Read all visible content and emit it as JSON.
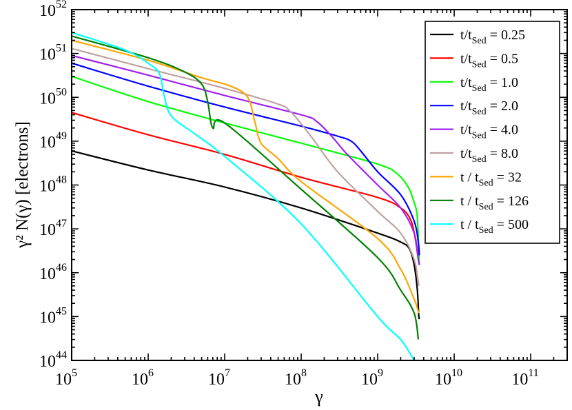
{
  "chart_data": {
    "type": "line",
    "xlabel": "γ",
    "ylabel": "γ² N(γ) [electrons]",
    "x_scale": "log",
    "y_scale": "log",
    "xlim": [
      100000,
      300000000000
    ],
    "ylim": [
      1e+44,
      1e+52
    ],
    "x_tick_exponents": [
      5,
      6,
      7,
      8,
      9,
      10,
      11
    ],
    "y_tick_exponents": [
      44,
      45,
      46,
      47,
      48,
      49,
      50,
      51,
      52
    ],
    "tick_base": "10",
    "grid": false,
    "legend_position": "top-right",
    "series": [
      {
        "name": "t/tSed = 0.25",
        "label_main": "t/t",
        "label_sub": "Sed",
        "label_tail": " = 0.25",
        "color": "#000000",
        "points": [
          [
            100000.0,
            6e+48
          ],
          [
            1000000.0,
            2.2e+48
          ],
          [
            10000000.0,
            9e+47
          ],
          [
            100000000.0,
            3e+47
          ],
          [
            1000000000.0,
            8e+46
          ],
          [
            2000000000.0,
            5e+46
          ],
          [
            2600000000.0,
            3.5e+46
          ],
          [
            3000000000.0,
            1.5e+46
          ],
          [
            3300000000.0,
            4e+45
          ],
          [
            3450000000.0,
            1e+45
          ],
          [
            3500000000.0,
            1e+45
          ]
        ]
      },
      {
        "name": "t/tSed = 0.5",
        "label_main": "t/t",
        "label_sub": "Sed",
        "label_tail": " = 0.5",
        "color": "#ff0000",
        "points": [
          [
            100000.0,
            4.5e+49
          ],
          [
            1000000.0,
            1.4e+49
          ],
          [
            10000000.0,
            5e+48
          ],
          [
            100000000.0,
            1.5e+48
          ],
          [
            1000000000.0,
            5.2e+47
          ],
          [
            2000000000.0,
            3e+47
          ],
          [
            2700000000.0,
            1.6e+47
          ],
          [
            3100000000.0,
            6e+46
          ],
          [
            3400000000.0,
            2e+46
          ],
          [
            3500000000.0,
            2e+46
          ]
        ]
      },
      {
        "name": "t/tSed = 1.0",
        "label_main": "t/t",
        "label_sub": "Sed",
        "label_tail": " = 1.0",
        "color": "#00ff00",
        "points": [
          [
            100000.0,
            3e+50
          ],
          [
            1000000.0,
            8e+49
          ],
          [
            10000000.0,
            2.6e+49
          ],
          [
            100000000.0,
            9e+48
          ],
          [
            1000000000.0,
            3e+48
          ],
          [
            1800000000.0,
            1.8e+48
          ],
          [
            2500000000.0,
            9e+47
          ],
          [
            3000000000.0,
            4e+47
          ],
          [
            3300000000.0,
            1.8e+47
          ],
          [
            3500000000.0,
            1.5e+46
          ]
        ]
      },
      {
        "name": "t/tSed = 2.0",
        "label_main": "t/t",
        "label_sub": "Sed",
        "label_tail": " = 2.0",
        "color": "#0000ff",
        "points": [
          [
            100000.0,
            6e+50
          ],
          [
            1000000.0,
            1.8e+50
          ],
          [
            10000000.0,
            6e+49
          ],
          [
            100000000.0,
            2.2e+49
          ],
          [
            300000000.0,
            1.3e+49
          ],
          [
            450000000.0,
            1e+49
          ],
          [
            600000000.0,
            6e+48
          ],
          [
            1000000000.0,
            2e+48
          ],
          [
            2000000000.0,
            6e+47
          ],
          [
            3000000000.0,
            1.5e+47
          ],
          [
            3400000000.0,
            5e+46
          ],
          [
            3500000000.0,
            2.5e+46
          ]
        ]
      },
      {
        "name": "t/tSed = 4.0",
        "label_main": "t/t",
        "label_sub": "Sed",
        "label_tail": " = 4.0",
        "color": "#a020f0",
        "points": [
          [
            100000.0,
            9e+50
          ],
          [
            1000000.0,
            3.2e+50
          ],
          [
            10000000.0,
            1.1e+50
          ],
          [
            100000000.0,
            4e+49
          ],
          [
            160000000.0,
            2.8e+49
          ],
          [
            250000000.0,
            1.3e+49
          ],
          [
            400000000.0,
            5e+48
          ],
          [
            1000000000.0,
            1e+48
          ],
          [
            2000000000.0,
            3e+47
          ],
          [
            3000000000.0,
            8e+46
          ],
          [
            3400000000.0,
            2e+46
          ],
          [
            3500000000.0,
            1.5e+46
          ]
        ]
      },
      {
        "name": "t/tSed = 8.0",
        "label_main": "t/t",
        "label_sub": "Sed",
        "label_tail": " = 8.0",
        "color": "#c0a0a0",
        "points": [
          [
            100000.0,
            1.3e+51
          ],
          [
            1000000.0,
            4.5e+50
          ],
          [
            10000000.0,
            1.6e+50
          ],
          [
            50000000.0,
            7e+49
          ],
          [
            70000000.0,
            5e+49
          ],
          [
            100000000.0,
            2.5e+49
          ],
          [
            150000000.0,
            1e+49
          ],
          [
            300000000.0,
            2e+48
          ],
          [
            1000000000.0,
            2.5e+47
          ],
          [
            2000000000.0,
            8e+46
          ],
          [
            3000000000.0,
            2e+46
          ],
          [
            3450000000.0,
            5e+45
          ]
        ]
      },
      {
        "name": "t / tSed = 32",
        "label_main": "t / t",
        "label_sub": "Sed",
        "label_tail": " = 32",
        "color": "#ffa500",
        "points": [
          [
            100000.0,
            2e+51
          ],
          [
            1000000.0,
            7e+50
          ],
          [
            5000000.0,
            2.8e+50
          ],
          [
            12000000.0,
            1.8e+50
          ],
          [
            20000000.0,
            1e+50
          ],
          [
            25000000.0,
            2.6e+49
          ],
          [
            30000000.0,
            9e+48
          ],
          [
            50000000.0,
            4e+48
          ],
          [
            100000000.0,
            1.2e+48
          ],
          [
            1000000000.0,
            6e+46
          ],
          [
            2000000000.0,
            1.2e+46
          ],
          [
            3000000000.0,
            2.5e+45
          ],
          [
            3450000000.0,
            1.2e+45
          ]
        ]
      },
      {
        "name": "t / tSed = 126",
        "label_main": "t / t",
        "label_sub": "Sed",
        "label_tail": " = 126",
        "color": "#008000",
        "points": [
          [
            100000.0,
            2.5e+51
          ],
          [
            1000000.0,
            8e+50
          ],
          [
            3000000.0,
            3.8e+50
          ],
          [
            5000000.0,
            2e+50
          ],
          [
            6000000.0,
            8e+49
          ],
          [
            7000000.0,
            2e+49
          ],
          [
            10000000.0,
            2.6e+49
          ],
          [
            100000000.0,
            8e+47
          ],
          [
            1000000000.0,
            2.2e+46
          ],
          [
            2000000000.0,
            4e+45
          ],
          [
            3000000000.0,
            1.2e+45
          ],
          [
            3400000000.0,
            3e+44
          ]
        ]
      },
      {
        "name": "t / tSed = 500",
        "label_main": "t / t",
        "label_sub": "Sed",
        "label_tail": " = 500",
        "color": "#00ffff",
        "points": [
          [
            100000.0,
            3e+51
          ],
          [
            500000.0,
            1.2e+51
          ],
          [
            1000000.0,
            6e+50
          ],
          [
            1400000.0,
            3.5e+50
          ],
          [
            1600000.0,
            1.2e+50
          ],
          [
            2000000.0,
            3.8e+49
          ],
          [
            4000000.0,
            1.5e+49
          ],
          [
            10000000.0,
            4.5e+48
          ],
          [
            100000000.0,
            1.3e+47
          ],
          [
            1000000000.0,
            1e+45
          ],
          [
            2000000000.0,
            3e+44
          ],
          [
            3000000000.0,
            1e+44
          ]
        ]
      }
    ]
  }
}
